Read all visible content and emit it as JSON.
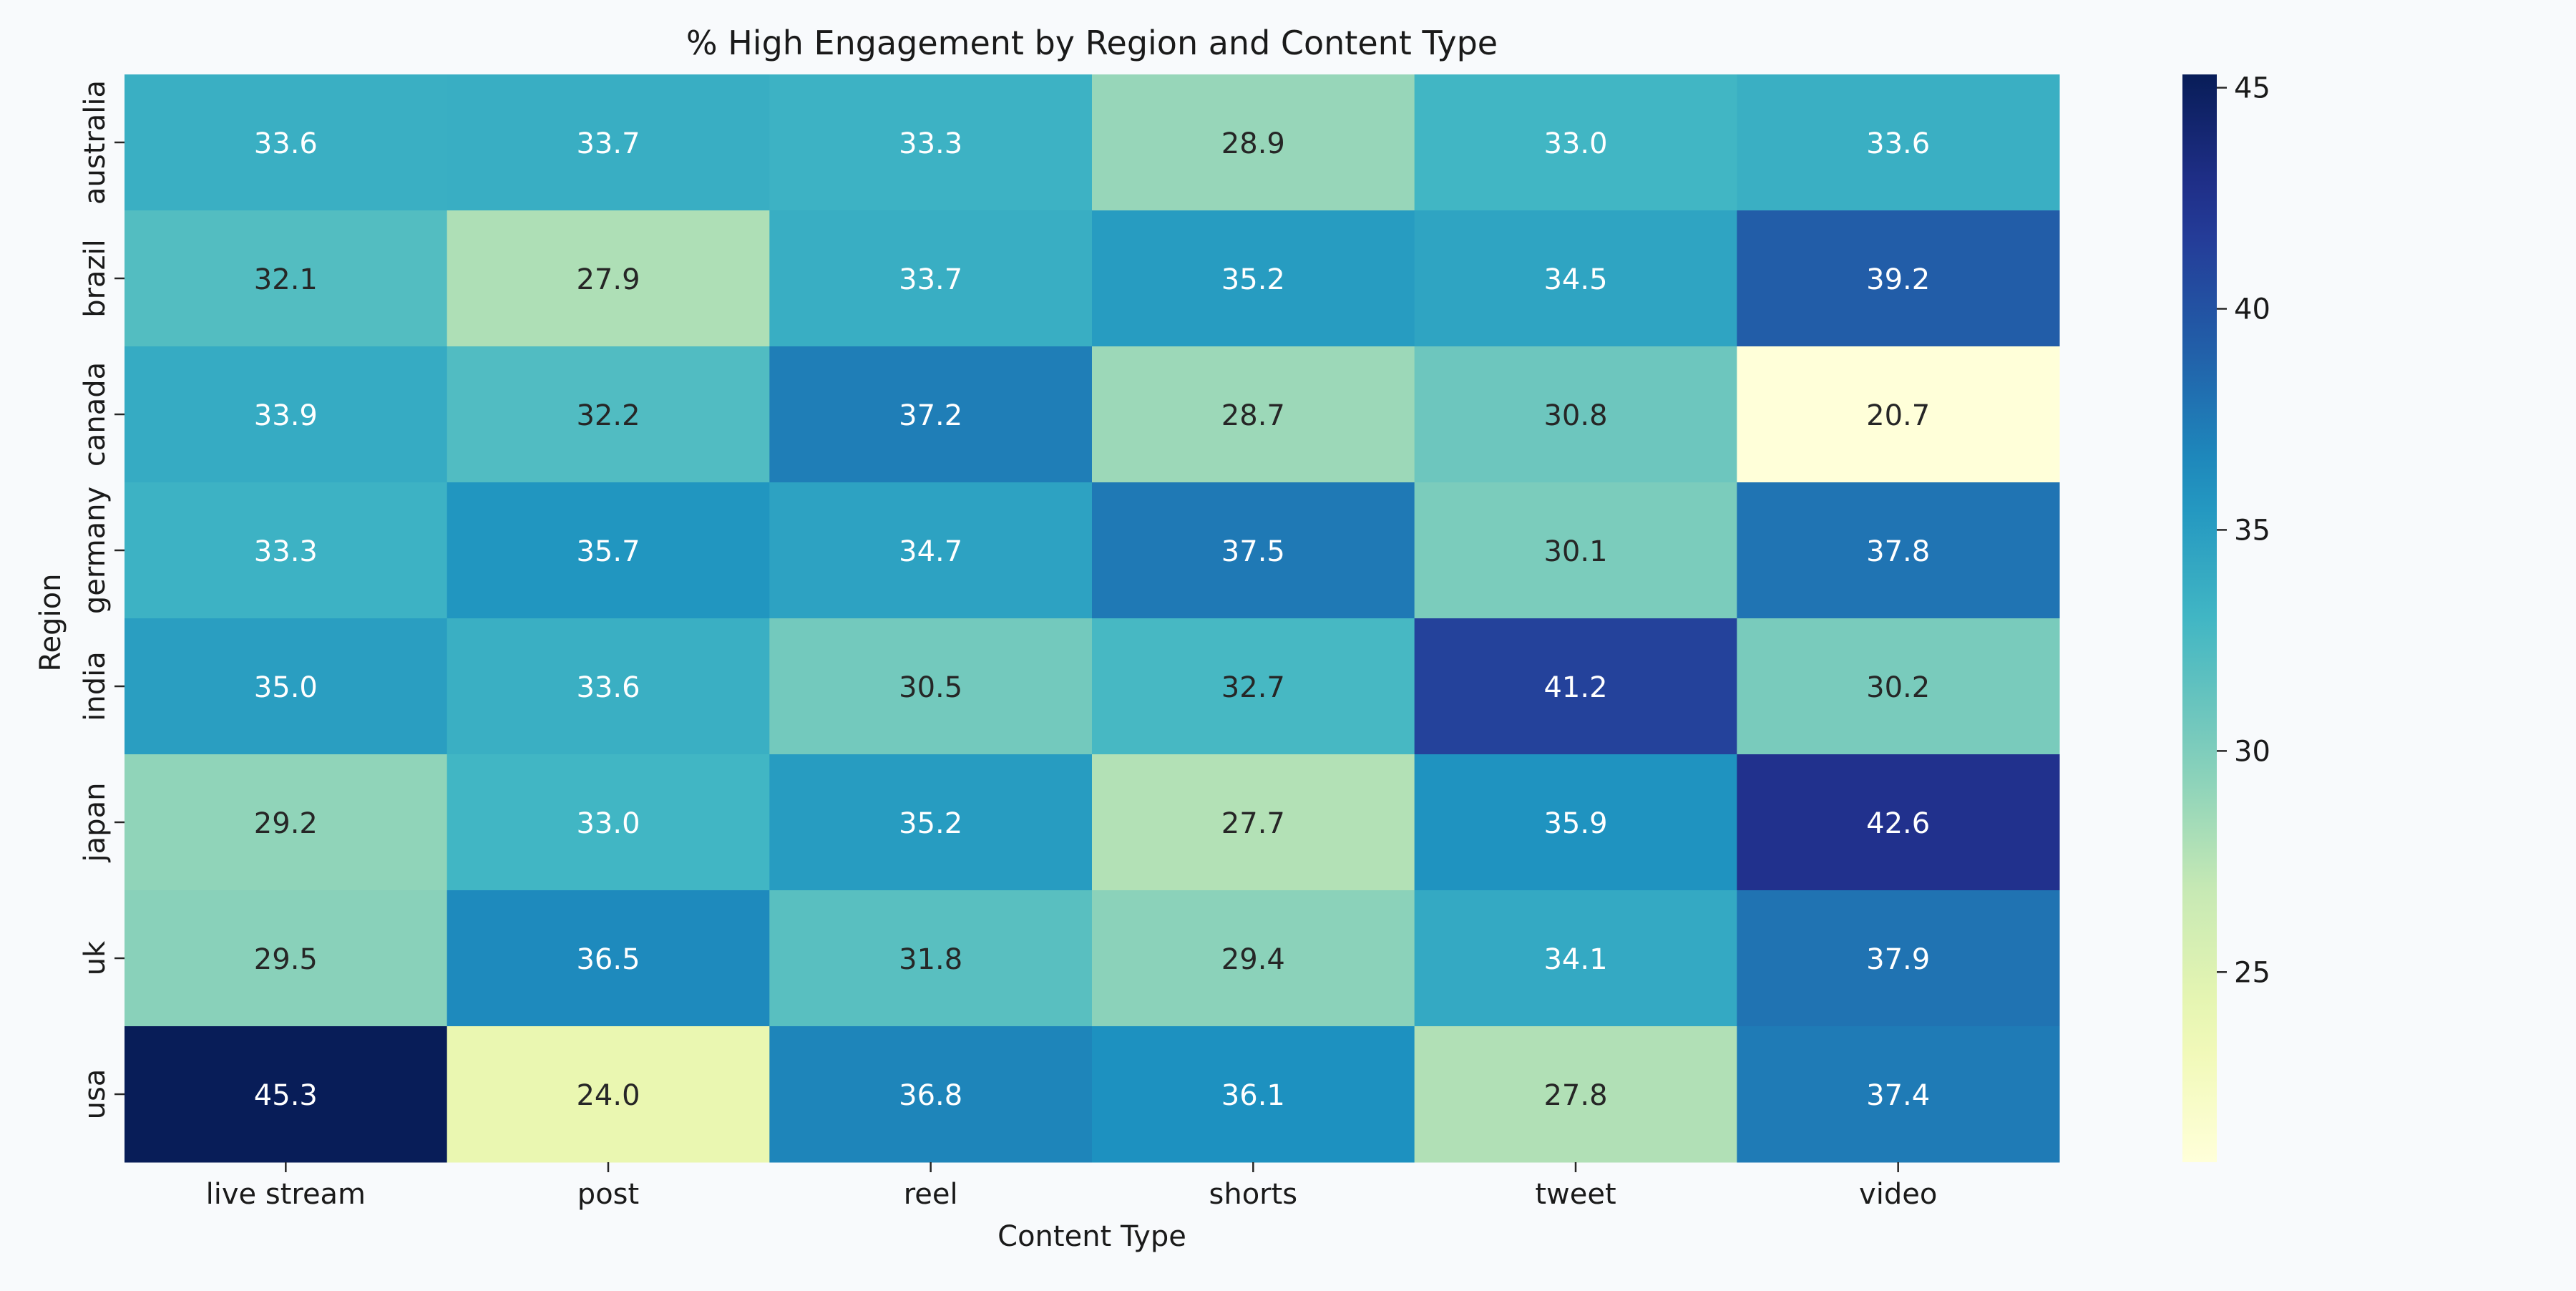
{
  "chart_data": {
    "type": "heatmap",
    "title": "% High Engagement by Region and Content Type",
    "xlabel": "Content Type",
    "ylabel": "Region",
    "x_categories": [
      "live stream",
      "post",
      "reel",
      "shorts",
      "tweet",
      "video"
    ],
    "y_categories": [
      "australia",
      "brazil",
      "canada",
      "germany",
      "india",
      "japan",
      "uk",
      "usa"
    ],
    "values": [
      [
        33.6,
        33.7,
        33.3,
        28.9,
        33.0,
        33.6
      ],
      [
        32.1,
        27.9,
        33.7,
        35.2,
        34.5,
        39.2
      ],
      [
        33.9,
        32.2,
        37.2,
        28.7,
        30.8,
        20.7
      ],
      [
        33.3,
        35.7,
        34.7,
        37.5,
        30.1,
        37.8
      ],
      [
        35.0,
        33.6,
        30.5,
        32.7,
        41.2,
        30.2
      ],
      [
        29.2,
        33.0,
        35.2,
        27.7,
        35.9,
        42.6
      ],
      [
        29.5,
        36.5,
        31.8,
        29.4,
        34.1,
        37.9
      ],
      [
        45.3,
        24.0,
        36.8,
        36.1,
        27.8,
        37.4
      ]
    ],
    "colorscale": "YlGnBu",
    "colorbar": {
      "range": [
        20.7,
        45.3
      ],
      "ticks": [
        25,
        30,
        35,
        40,
        45
      ]
    },
    "annotations": true,
    "grid": false
  }
}
